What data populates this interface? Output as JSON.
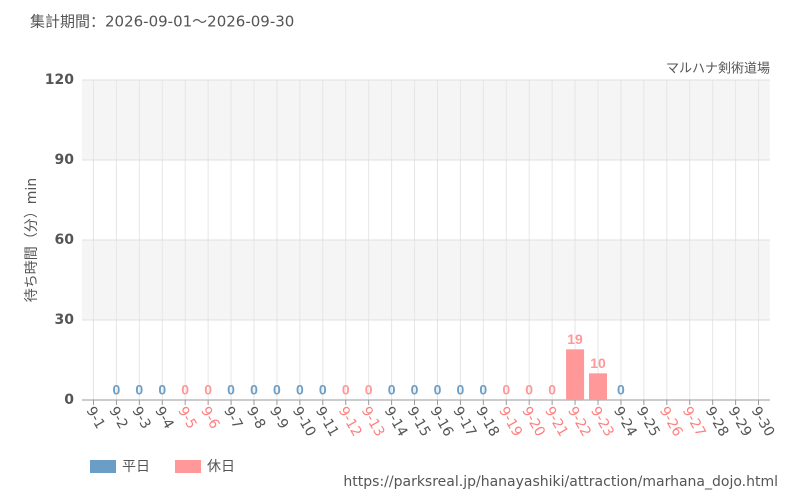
{
  "chart_data": {
    "type": "bar",
    "title": "集計期間：2026-09-01～2026-09-30",
    "subtitle": "マルハナ剣術道場",
    "y_label": "待ち時間（分）min",
    "source": "https://parksreal.jp/hanayashiki/attraction/marhana_dojo.html",
    "categories": [
      "9-1",
      "9-2",
      "9-3",
      "9-4",
      "9-5",
      "9-6",
      "9-7",
      "9-8",
      "9-9",
      "9-10",
      "9-11",
      "9-12",
      "9-13",
      "9-14",
      "9-15",
      "9-16",
      "9-17",
      "9-18",
      "9-19",
      "9-20",
      "9-21",
      "9-22",
      "9-23",
      "9-24",
      "9-25",
      "9-26",
      "9-27",
      "9-28",
      "9-29",
      "9-30"
    ],
    "category_colors": [
      "#555555",
      "#555555",
      "#555555",
      "#555555",
      "#ff8080",
      "#ff8080",
      "#555555",
      "#555555",
      "#555555",
      "#555555",
      "#555555",
      "#ff8080",
      "#ff8080",
      "#555555",
      "#555555",
      "#555555",
      "#555555",
      "#555555",
      "#ff8080",
      "#ff8080",
      "#ff8080",
      "#ff8080",
      "#ff8080",
      "#555555",
      "#555555",
      "#ff8080",
      "#ff8080",
      "#555555",
      "#555555",
      "#555555"
    ],
    "series": [
      {
        "name": "平日",
        "color": "#6a9ec6",
        "values": [
          null,
          0,
          0,
          0,
          null,
          null,
          0,
          0,
          0,
          0,
          0,
          null,
          null,
          0,
          0,
          0,
          0,
          0,
          null,
          null,
          null,
          null,
          null,
          0,
          null,
          null,
          null,
          null,
          null,
          null
        ]
      },
      {
        "name": "休日",
        "color": "#ff9999",
        "values": [
          null,
          null,
          null,
          null,
          0,
          0,
          null,
          null,
          null,
          null,
          null,
          0,
          0,
          null,
          null,
          null,
          null,
          null,
          0,
          0,
          0,
          19,
          10,
          null,
          null,
          null,
          null,
          null,
          null,
          null
        ]
      }
    ],
    "ylim": [
      0,
      120
    ],
    "yticks": [
      0,
      30,
      60,
      90,
      120
    ],
    "grid": true
  }
}
